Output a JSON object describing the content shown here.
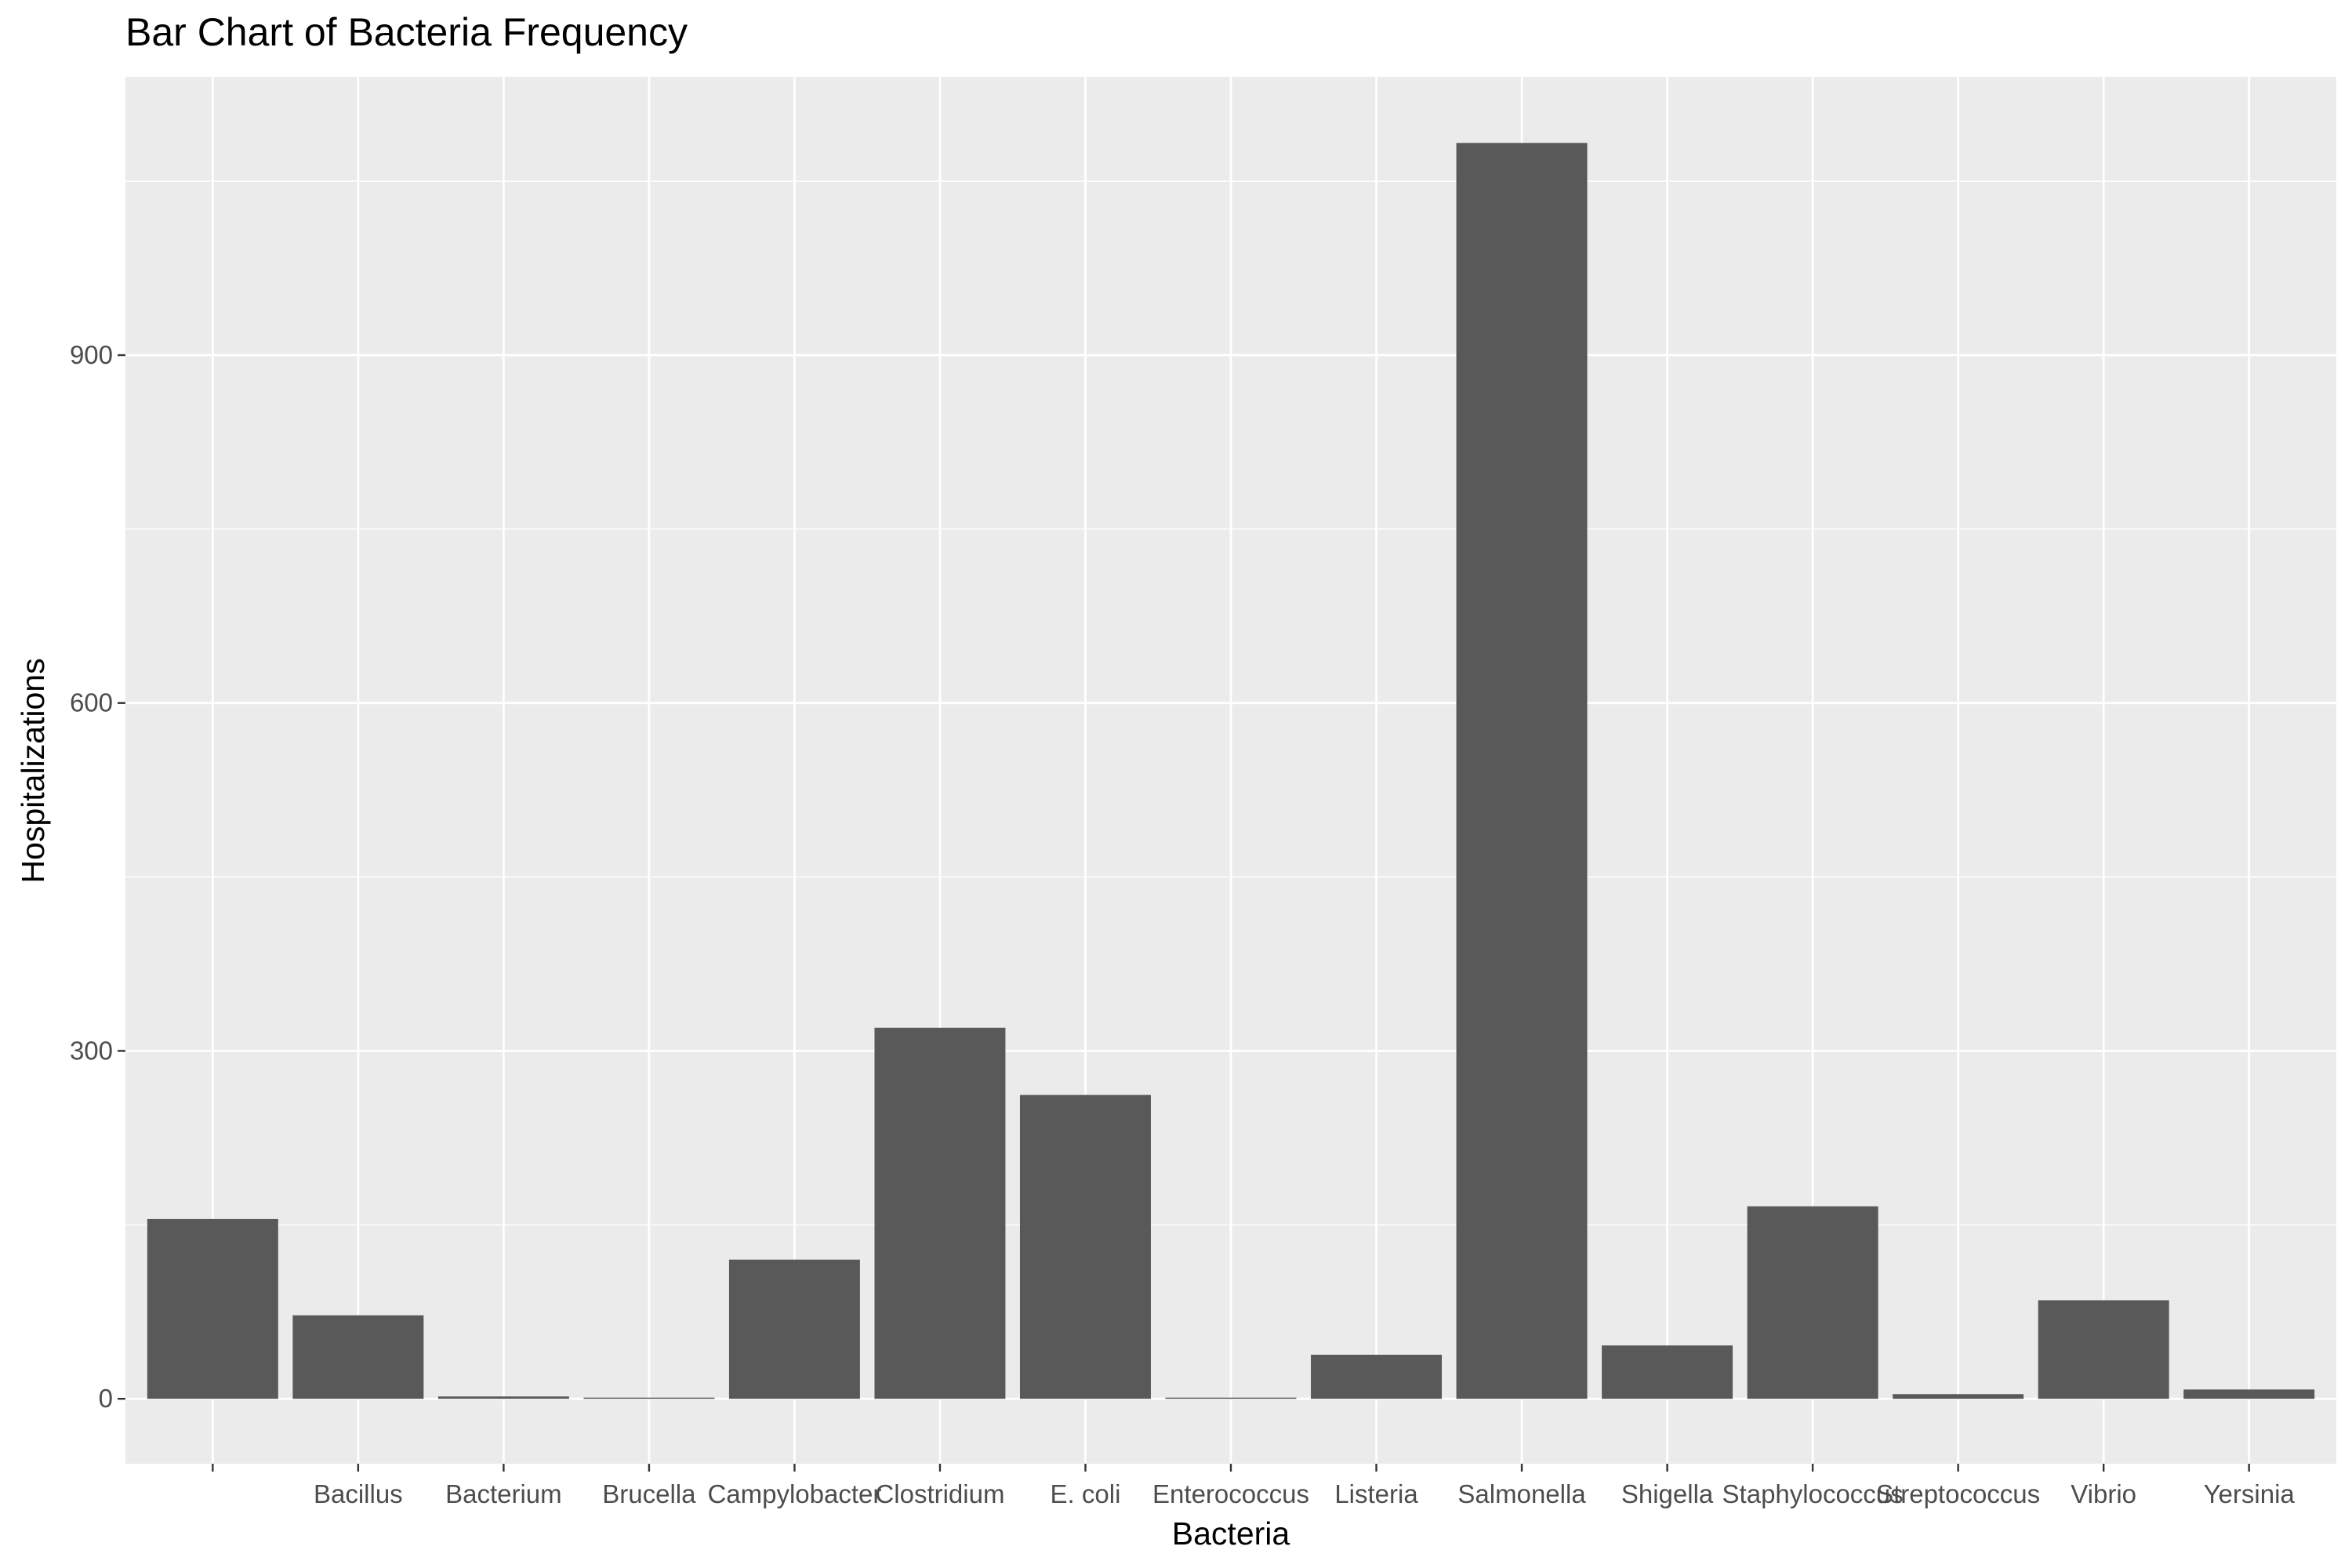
{
  "chart_data": {
    "type": "bar",
    "title": "Bar Chart of Bacteria Frequency",
    "xlabel": "Bacteria",
    "ylabel": "Hospitalizations",
    "categories": [
      "",
      "Bacillus",
      "Bacterium",
      "Brucella",
      "Campylobacter",
      "Clostridium",
      "E. coli",
      "Enterococcus",
      "Listeria",
      "Salmonella",
      "Shigella",
      "Staphylococcus",
      "Streptococcus",
      "Vibrio",
      "Yersinia"
    ],
    "values": [
      155,
      72,
      2,
      1,
      120,
      320,
      262,
      1,
      38,
      1083,
      46,
      166,
      4,
      85,
      8
    ],
    "ylim": [
      -56,
      1140
    ],
    "yticks": [
      "0",
      "300",
      "600",
      "900"
    ],
    "grid": true,
    "legend": "none",
    "colors": {
      "bar": "#595959",
      "panel": "#ebebeb",
      "grid": "#ffffff"
    }
  }
}
